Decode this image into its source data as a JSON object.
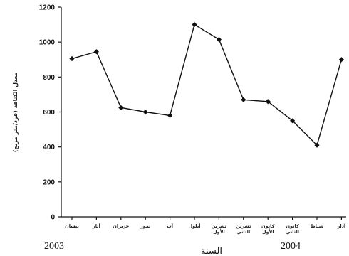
{
  "chart_data": {
    "type": "line",
    "xlabel": "السنة",
    "ylabel": "معدل الكثافة (فرد/متر مربع)",
    "ylim": [
      0,
      1200
    ],
    "yticks": [
      "0",
      "200",
      "400",
      "600",
      "800",
      "1000",
      "1200"
    ],
    "categories": [
      "نيسان",
      "أيار",
      "حزيران",
      "تموز",
      "آب",
      "أيلول",
      "تشرين الأول",
      "تشرين الثاني",
      "كانون الأول",
      "كانون الثاني",
      "شباط",
      "آذار"
    ],
    "values": [
      905,
      945,
      625,
      600,
      580,
      1100,
      1015,
      670,
      660,
      550,
      410,
      900
    ],
    "year_labels": [
      "2003",
      "2004"
    ],
    "grid": false,
    "legend": "none"
  }
}
